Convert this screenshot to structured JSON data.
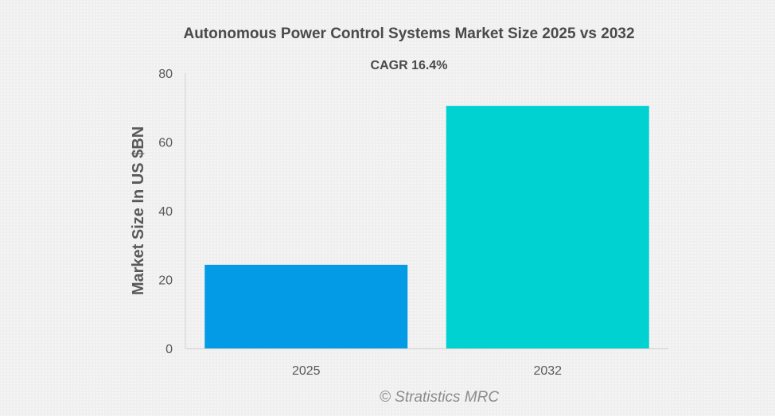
{
  "chart_data": {
    "type": "bar",
    "title": "Autonomous Power Control Systems Market Size 2025 vs 2032",
    "subtitle": "CAGR 16.4%",
    "xlabel": "",
    "ylabel": "Market Size In US $BN",
    "categories": [
      "2025",
      "2032"
    ],
    "values": [
      24.3,
      70.5
    ],
    "ylim": [
      0,
      80
    ],
    "yticks": [
      "0",
      "20",
      "40",
      "60",
      "80"
    ],
    "grid": false,
    "legend": "none",
    "colors": [
      "#039BE5",
      "#00D1D1"
    ]
  },
  "footer": {
    "credit": "© Stratistics MRC"
  }
}
